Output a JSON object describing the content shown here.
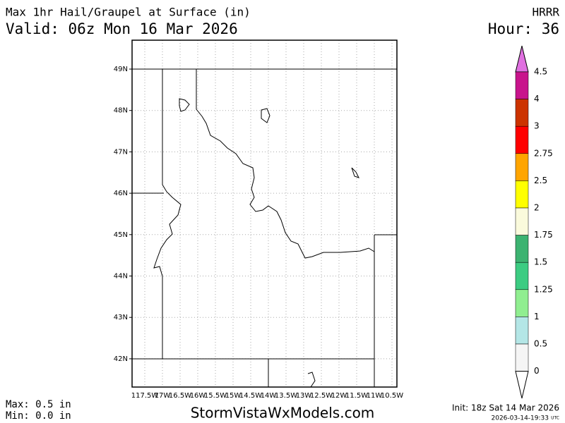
{
  "header": {
    "title": "Max 1hr Hail/Graupel at Surface (in)",
    "valid": "Valid: 06z Mon 16 Mar 2026",
    "model": "HRRR",
    "hour": "Hour: 36"
  },
  "map": {
    "lat_labels": [
      "49N",
      "48N",
      "47N",
      "46N",
      "45N",
      "44N",
      "43N",
      "42N"
    ],
    "lon_labels": [
      "117.5W",
      "17W",
      "16.5W",
      "16W",
      "15.5W",
      "15W",
      "14.5W",
      "14W",
      "13.5W",
      "13W",
      "12.5W",
      "12W",
      "11.5W",
      "11W",
      "10.5W"
    ]
  },
  "colorbar": {
    "labels": [
      "4.5",
      "4",
      "3",
      "2.75",
      "2.5",
      "2",
      "1.75",
      "1.5",
      "1.25",
      "1",
      "0.5",
      "0"
    ],
    "colors": [
      "#e070e0",
      "#c8148c",
      "#cc3300",
      "#ff0000",
      "#ffa500",
      "#ffff00",
      "#fafadc",
      "#3cb371",
      "#3ccc82",
      "#90ee90",
      "#b4e6e6",
      "#f5f5f5",
      "#ffffff"
    ]
  },
  "footer": {
    "max": "Max: 0.5 in",
    "min": "Min: 0.0 in",
    "site": "StormVistaWxModels.com",
    "init": "Init: 18z Sat 14 Mar 2026",
    "stamp": "2026-03-14-19:33",
    "tz": "UTC"
  }
}
